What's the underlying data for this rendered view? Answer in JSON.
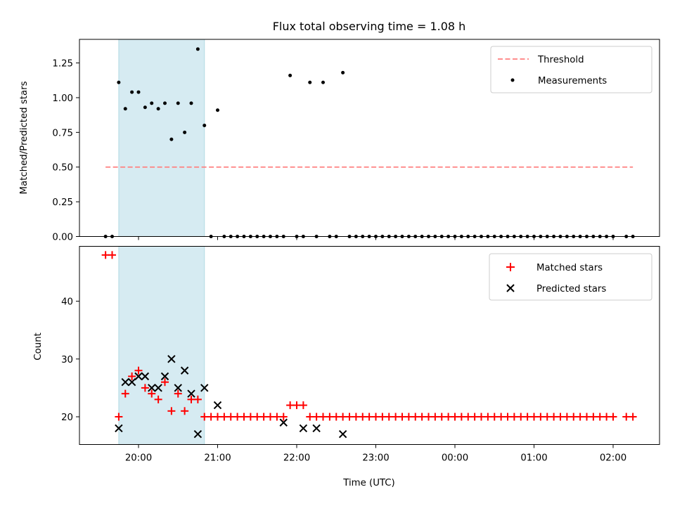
{
  "chart_data": [
    {
      "type": "scatter",
      "title": "Flux total observing time = 1.08 h",
      "xlabel": "",
      "ylabel": "Matched/Predicted stars",
      "ylim": [
        0,
        1.42
      ],
      "y_ticks": [
        "0.00",
        "0.25",
        "0.50",
        "0.75",
        "1.00",
        "1.25"
      ],
      "x_tick_labels": [
        "20:00",
        "21:00",
        "22:00",
        "23:00",
        "00:00",
        "01:00",
        "02:00"
      ],
      "highlight_span": [
        "19:45",
        "20:50"
      ],
      "threshold": {
        "name": "Threshold",
        "value": 0.5,
        "x_range": [
          "19:35",
          "02:15"
        ],
        "color": "#ff7f7f"
      },
      "series": [
        {
          "name": "Measurements",
          "color": "#000000",
          "x": [
            "19:35",
            "19:40",
            "19:45",
            "19:50",
            "19:55",
            "20:00",
            "20:05",
            "20:10",
            "20:15",
            "20:20",
            "20:25",
            "20:30",
            "20:35",
            "20:40",
            "20:45",
            "20:50",
            "20:55",
            "21:00",
            "21:05",
            "21:10",
            "21:15",
            "21:20",
            "21:25",
            "21:30",
            "21:35",
            "21:40",
            "21:45",
            "21:50",
            "21:55",
            "22:00",
            "22:05",
            "22:10",
            "22:15",
            "22:20",
            "22:25",
            "22:30",
            "22:35",
            "22:40",
            "22:45",
            "22:50",
            "22:55",
            "23:00",
            "23:05",
            "23:10",
            "23:15",
            "23:20",
            "23:25",
            "23:30",
            "23:35",
            "23:40",
            "23:45",
            "23:50",
            "23:55",
            "00:00",
            "00:05",
            "00:10",
            "00:15",
            "00:20",
            "00:25",
            "00:30",
            "00:35",
            "00:40",
            "00:45",
            "00:50",
            "00:55",
            "01:00",
            "01:05",
            "01:10",
            "01:15",
            "01:20",
            "01:25",
            "01:30",
            "01:35",
            "01:40",
            "01:45",
            "01:50",
            "01:55",
            "02:00",
            "02:10",
            "02:15"
          ],
          "y": [
            0,
            0,
            1.11,
            0.92,
            1.04,
            1.04,
            0.93,
            0.96,
            0.92,
            0.96,
            0.7,
            0.96,
            0.75,
            0.96,
            1.35,
            0.8,
            0,
            0.91,
            0,
            0,
            0,
            0,
            0,
            0,
            0,
            0,
            0,
            0,
            1.16,
            0,
            0,
            1.11,
            0,
            1.11,
            0,
            0,
            1.18,
            0,
            0,
            0,
            0,
            0,
            0,
            0,
            0,
            0,
            0,
            0,
            0,
            0,
            0,
            0,
            0,
            0,
            0,
            0,
            0,
            0,
            0,
            0,
            0,
            0,
            0,
            0,
            0,
            0,
            0,
            0,
            0,
            0,
            0,
            0,
            0,
            0,
            0,
            0,
            0,
            0,
            0,
            0
          ]
        }
      ]
    },
    {
      "type": "scatter",
      "xlabel": "Time (UTC)",
      "ylabel": "Count",
      "ylim": [
        15.2,
        49.5
      ],
      "y_ticks": [
        "20",
        "30",
        "40"
      ],
      "x_tick_labels": [
        "20:00",
        "21:00",
        "22:00",
        "23:00",
        "00:00",
        "01:00",
        "02:00"
      ],
      "highlight_span": [
        "19:45",
        "20:50"
      ],
      "series": [
        {
          "name": "Matched stars",
          "marker": "+",
          "color": "#ff0000",
          "x": [
            "19:35",
            "19:40",
            "19:45",
            "19:50",
            "19:55",
            "20:00",
            "20:05",
            "20:10",
            "20:15",
            "20:20",
            "20:25",
            "20:30",
            "20:35",
            "20:40",
            "20:45",
            "20:50",
            "20:55",
            "21:00",
            "21:05",
            "21:10",
            "21:15",
            "21:20",
            "21:25",
            "21:30",
            "21:35",
            "21:40",
            "21:45",
            "21:50",
            "21:55",
            "22:00",
            "22:05",
            "22:10",
            "22:15",
            "22:20",
            "22:25",
            "22:30",
            "22:35",
            "22:40",
            "22:45",
            "22:50",
            "22:55",
            "23:00",
            "23:05",
            "23:10",
            "23:15",
            "23:20",
            "23:25",
            "23:30",
            "23:35",
            "23:40",
            "23:45",
            "23:50",
            "23:55",
            "00:00",
            "00:05",
            "00:10",
            "00:15",
            "00:20",
            "00:25",
            "00:30",
            "00:35",
            "00:40",
            "00:45",
            "00:50",
            "00:55",
            "01:00",
            "01:05",
            "01:10",
            "01:15",
            "01:20",
            "01:25",
            "01:30",
            "01:35",
            "01:40",
            "01:45",
            "01:50",
            "01:55",
            "02:00",
            "02:10",
            "02:15"
          ],
          "y": [
            48,
            48,
            20,
            24,
            27,
            28,
            25,
            24,
            23,
            26,
            21,
            24,
            21,
            23,
            23,
            20,
            20,
            20,
            20,
            20,
            20,
            20,
            20,
            20,
            20,
            20,
            20,
            20,
            22,
            22,
            22,
            20,
            20,
            20,
            20,
            20,
            20,
            20,
            20,
            20,
            20,
            20,
            20,
            20,
            20,
            20,
            20,
            20,
            20,
            20,
            20,
            20,
            20,
            20,
            20,
            20,
            20,
            20,
            20,
            20,
            20,
            20,
            20,
            20,
            20,
            20,
            20,
            20,
            20,
            20,
            20,
            20,
            20,
            20,
            20,
            20,
            20,
            20,
            20,
            20
          ]
        },
        {
          "name": "Predicted stars",
          "marker": "x",
          "color": "#000000",
          "x": [
            "19:45",
            "19:50",
            "19:55",
            "20:00",
            "20:05",
            "20:10",
            "20:15",
            "20:20",
            "20:25",
            "20:30",
            "20:35",
            "20:40",
            "20:45",
            "20:50",
            "21:00",
            "21:50",
            "22:05",
            "22:15",
            "22:35"
          ],
          "y": [
            18,
            26,
            26,
            27,
            27,
            25,
            25,
            27,
            30,
            25,
            28,
            24,
            17,
            25,
            22,
            19,
            18,
            18,
            17
          ]
        }
      ]
    }
  ]
}
